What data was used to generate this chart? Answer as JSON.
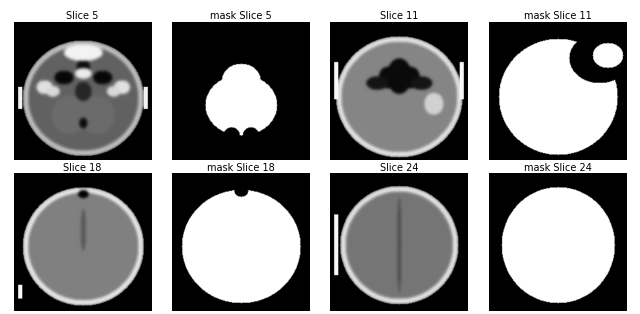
{
  "titles": [
    "Slice 5",
    "mask Slice 5",
    "Slice 11",
    "mask Slice 11",
    "Slice 18",
    "mask Slice 18",
    "Slice 24",
    "mask Slice 24"
  ],
  "figsize": [
    6.4,
    3.14
  ],
  "dpi": 100,
  "background": "#ffffff",
  "title_fontsize": 7.0
}
